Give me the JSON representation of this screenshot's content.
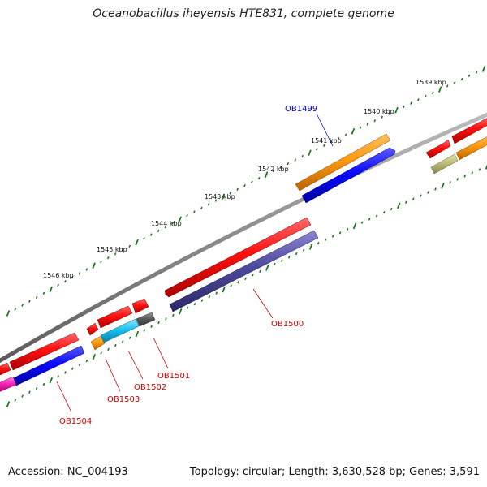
{
  "title": "Oceanobacillus iheyensis HTE831, complete genome",
  "footer": {
    "accession": "Accession: NC_004193",
    "info": "Topology: circular; Length: 3,630,528 bp; Genes: 3,591"
  },
  "colors": {
    "backbone": "#8c8c8c",
    "tick": "#1a7a1a",
    "label_red": "#cc0000",
    "label_blue": "#0000cc"
  },
  "kbp_labels": [
    "1539 kbp",
    "1540 kbp",
    "1541 kbp",
    "1542 kbp",
    "1543 kbp",
    "1544 kbp",
    "1545 kbp",
    "1546 kbp"
  ],
  "gene_labels": [
    {
      "name": "OB1499",
      "color": "#0000cc"
    },
    {
      "name": "OB1500",
      "color": "#cc0000"
    },
    {
      "name": "OB1501",
      "color": "#cc0000"
    },
    {
      "name": "OB1502",
      "color": "#cc0000"
    },
    {
      "name": "OB1503",
      "color": "#cc0000"
    },
    {
      "name": "OB1504",
      "color": "#cc0000"
    }
  ]
}
